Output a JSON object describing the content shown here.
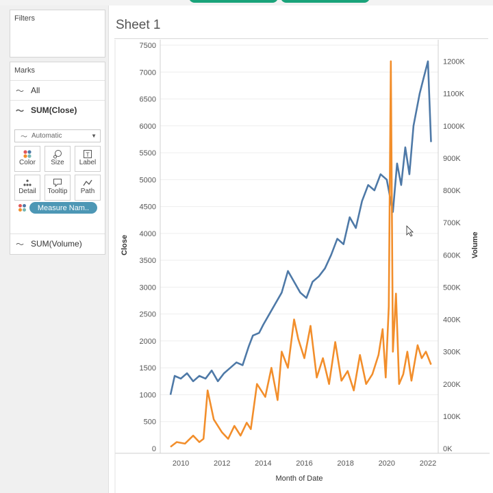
{
  "filters": {
    "title": "Filters"
  },
  "marks": {
    "title": "Marks",
    "rows": [
      {
        "label": "All"
      },
      {
        "label": "SUM(Close)"
      },
      {
        "label": "SUM(Volume)"
      }
    ],
    "mark_type": "Automatic",
    "buttons": [
      "Color",
      "Size",
      "Label",
      "Detail",
      "Tooltip",
      "Path"
    ],
    "pill": "Measure Nam.."
  },
  "sheet": {
    "title": "Sheet 1"
  },
  "colors": {
    "close": "#4e79a7",
    "volume": "#f28e2b",
    "pill": "#4d97b5",
    "tab": "#1aa37a"
  },
  "chart_data": {
    "type": "line",
    "xlabel": "Month of Date",
    "ylabel_left": "Close",
    "ylabel_right": "Volume",
    "x_ticks": [
      "2010",
      "2012",
      "2014",
      "2016",
      "2018",
      "2020",
      "2022"
    ],
    "y_left_ticks": [
      "0",
      "500",
      "1000",
      "1500",
      "2000",
      "2500",
      "3000",
      "3500",
      "4000",
      "4500",
      "5000",
      "5500",
      "6000",
      "6500",
      "7000",
      "7500"
    ],
    "y_right_ticks": [
      "0K",
      "100K",
      "200K",
      "300K",
      "400K",
      "500K",
      "600K",
      "700K",
      "800K",
      "900K",
      "1000K",
      "1100K",
      "1200K"
    ],
    "ylim_left": [
      0,
      7500
    ],
    "ylim_right": [
      0,
      1200000
    ],
    "xlim": [
      2009.0,
      2022.5
    ],
    "grid": "horizontal",
    "series": [
      {
        "name": "SUM(Close)",
        "axis": "left",
        "x": [
          2009.5,
          2009.7,
          2010.0,
          2010.3,
          2010.6,
          2010.9,
          2011.2,
          2011.5,
          2011.8,
          2012.1,
          2012.4,
          2012.7,
          2013.0,
          2013.3,
          2013.5,
          2013.8,
          2014.0,
          2014.3,
          2014.6,
          2014.9,
          2015.2,
          2015.5,
          2015.8,
          2016.1,
          2016.4,
          2016.7,
          2017.0,
          2017.3,
          2017.6,
          2017.9,
          2018.2,
          2018.5,
          2018.8,
          2019.1,
          2019.4,
          2019.7,
          2020.0,
          2020.3,
          2020.5,
          2020.7,
          2020.9,
          2021.1,
          2021.3,
          2021.6,
          2021.8,
          2022.0,
          2022.15
        ],
        "y": [
          1000,
          1350,
          1300,
          1400,
          1250,
          1350,
          1300,
          1450,
          1250,
          1400,
          1500,
          1600,
          1550,
          1900,
          2100,
          2150,
          2300,
          2500,
          2700,
          2900,
          3300,
          3100,
          2900,
          2800,
          3100,
          3200,
          3350,
          3600,
          3900,
          3800,
          4300,
          4100,
          4600,
          4900,
          4800,
          5100,
          5000,
          4400,
          5300,
          4900,
          5600,
          5100,
          6000,
          6600,
          6900,
          7200,
          5700
        ]
      },
      {
        "name": "SUM(Volume)",
        "axis": "right",
        "x": [
          2009.5,
          2009.8,
          2010.2,
          2010.6,
          2010.9,
          2011.1,
          2011.3,
          2011.6,
          2012.0,
          2012.3,
          2012.6,
          2012.9,
          2013.2,
          2013.4,
          2013.7,
          2013.9,
          2014.1,
          2014.4,
          2014.7,
          2014.9,
          2015.2,
          2015.5,
          2015.7,
          2016.0,
          2016.3,
          2016.6,
          2016.9,
          2017.2,
          2017.5,
          2017.8,
          2018.1,
          2018.4,
          2018.7,
          2019.0,
          2019.3,
          2019.6,
          2019.8,
          2019.95,
          2020.1,
          2020.2,
          2020.3,
          2020.45,
          2020.6,
          2020.8,
          2021.0,
          2021.2,
          2021.5,
          2021.7,
          2021.9,
          2022.15
        ],
        "y": [
          5000,
          20000,
          15000,
          40000,
          20000,
          30000,
          180000,
          90000,
          50000,
          30000,
          70000,
          40000,
          80000,
          60000,
          200000,
          180000,
          160000,
          250000,
          150000,
          300000,
          250000,
          400000,
          340000,
          280000,
          380000,
          220000,
          280000,
          200000,
          330000,
          210000,
          240000,
          180000,
          290000,
          200000,
          230000,
          290000,
          370000,
          220000,
          440000,
          1200000,
          300000,
          480000,
          200000,
          230000,
          300000,
          210000,
          320000,
          280000,
          300000,
          260000
        ]
      }
    ]
  }
}
